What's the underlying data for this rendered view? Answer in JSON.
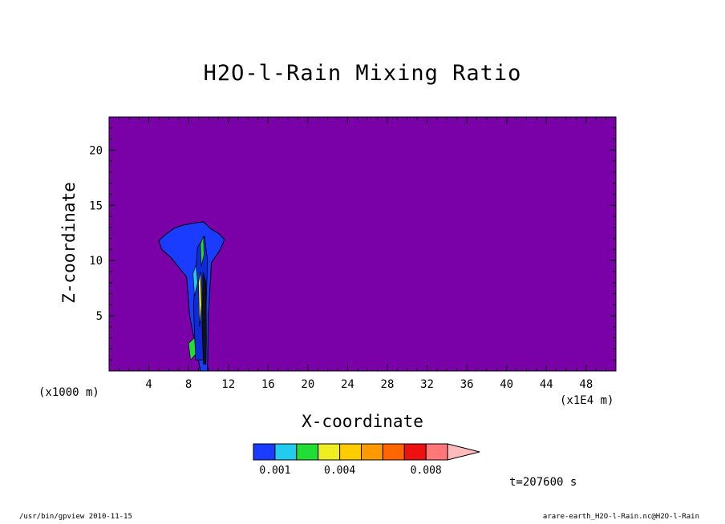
{
  "chart_data": {
    "type": "heatmap",
    "title": "H2O-l-Rain Mixing Ratio",
    "xlabel": "X-coordinate",
    "ylabel": "Z-coordinate",
    "x_unit_left": "(x1000 m)",
    "x_unit_right": "(x1E4 m)",
    "xlim": [
      0,
      51
    ],
    "ylim": [
      0,
      23
    ],
    "x_ticks": [
      4,
      8,
      12,
      16,
      20,
      24,
      28,
      32,
      36,
      40,
      44,
      48
    ],
    "y_ticks": [
      5,
      10,
      15,
      20
    ],
    "background_value": 0,
    "colorbar": {
      "colors": [
        "#1a3cff",
        "#22ccee",
        "#22dd33",
        "#eeee22",
        "#ffcc00",
        "#ff9900",
        "#ff6600",
        "#ee1111",
        "#ff7777",
        "#ffbbbb"
      ],
      "labels": [
        {
          "text": "0.001",
          "value": 0.001
        },
        {
          "text": "0.004",
          "value": 0.004
        },
        {
          "text": "0.008",
          "value": 0.008
        }
      ],
      "extend": "max"
    },
    "background_color": "#7a00a8",
    "feature": {
      "description_values": "rain column",
      "x_range": [
        5,
        11.5
      ],
      "z_top": 13.5
    },
    "time_label": "t=207600 s",
    "footer_left": "/usr/bin/gpview  2010-11-15",
    "footer_right": "arare-earth_H2O-l-Rain.nc@H2O-l-Rain"
  }
}
